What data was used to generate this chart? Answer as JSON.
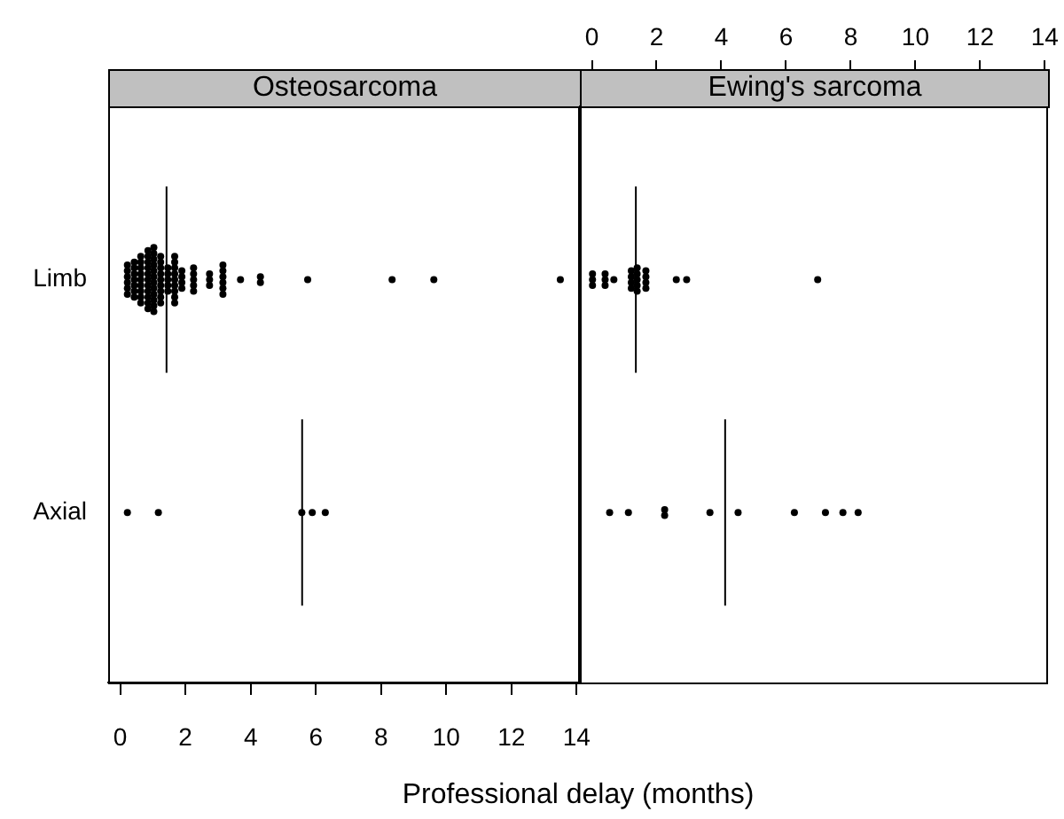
{
  "chart_data": [
    {
      "type": "scatter",
      "orientation": "horizontal",
      "title": "Osteosarcoma",
      "xlabel": "Professional delay (months)",
      "categories": [
        "Limb",
        "Axial"
      ],
      "xlim": [
        -0.37,
        14.1
      ],
      "xticks": [
        0,
        2,
        4,
        6,
        8,
        10,
        12,
        14
      ],
      "marker": "circle",
      "series": [
        {
          "color": "#000000",
          "x": [
            "Limb",
            "Limb",
            "Limb",
            "Limb",
            "Limb",
            "Limb",
            "Limb",
            "Limb",
            "Limb",
            "Limb",
            "Limb",
            "Limb",
            "Limb",
            "Limb",
            "Limb",
            "Limb",
            "Limb",
            "Limb",
            "Limb",
            "Limb",
            "Limb",
            "Limb",
            "Limb",
            "Limb",
            "Limb",
            "Limb",
            "Limb",
            "Limb",
            "Limb",
            "Limb",
            "Limb",
            "Limb",
            "Limb",
            "Limb",
            "Limb",
            "Limb",
            "Limb",
            "Limb",
            "Limb",
            "Limb",
            "Limb",
            "Limb",
            "Limb",
            "Limb",
            "Limb",
            "Limb",
            "Limb",
            "Limb",
            "Limb",
            "Limb",
            "Limb",
            "Limb",
            "Limb",
            "Limb",
            "Limb",
            "Limb",
            "Limb",
            "Limb",
            "Limb",
            "Limb",
            "Limb",
            "Limb",
            "Limb",
            "Limb",
            "Limb",
            "Limb",
            "Limb",
            "Limb",
            "Limb",
            "Limb",
            "Limb",
            "Limb",
            "Limb",
            "Limb",
            "Limb",
            "Limb",
            "Limb",
            "Limb",
            "Limb",
            "Limb",
            "Limb",
            "Limb",
            "Limb",
            "Limb",
            "Limb",
            "Limb",
            "Limb",
            "Limb",
            "Limb",
            "Limb",
            "Limb",
            "Limb",
            "Limb",
            "Axial",
            "Axial",
            "Axial",
            "Axial",
            "Axial"
          ],
          "values": [
            0.22,
            0.22,
            0.22,
            0.22,
            0.22,
            0.22,
            0.43,
            0.43,
            0.43,
            0.43,
            0.43,
            0.43,
            0.43,
            0.63,
            0.63,
            0.63,
            0.63,
            0.63,
            0.63,
            0.63,
            0.63,
            0.63,
            0.85,
            0.85,
            0.85,
            0.85,
            0.85,
            0.85,
            0.85,
            0.85,
            0.85,
            0.85,
            0.85,
            1.03,
            1.03,
            1.03,
            1.03,
            1.03,
            1.03,
            1.03,
            1.03,
            1.03,
            1.03,
            1.03,
            1.03,
            1.24,
            1.24,
            1.24,
            1.24,
            1.24,
            1.24,
            1.24,
            1.24,
            1.24,
            1.46,
            1.46,
            1.46,
            1.46,
            1.46,
            1.67,
            1.67,
            1.67,
            1.67,
            1.67,
            1.67,
            1.67,
            1.67,
            1.67,
            1.89,
            1.89,
            1.89,
            1.89,
            2.25,
            2.25,
            2.25,
            2.25,
            2.25,
            2.74,
            2.74,
            2.74,
            3.15,
            3.15,
            3.15,
            3.15,
            3.15,
            3.15,
            3.69,
            4.3,
            4.3,
            5.75,
            8.34,
            9.62,
            13.5,
            0.22,
            1.17,
            5.57,
            5.89,
            6.29
          ]
        }
      ],
      "ref_lines": [
        {
          "axis": "x",
          "value": 1.42,
          "color": "#000000"
        },
        {
          "axis": "x",
          "value": 5.58,
          "color": "#000000"
        }
      ]
    },
    {
      "type": "scatter",
      "orientation": "horizontal",
      "title": "Ewing's sarcoma",
      "categories": [
        "Limb",
        "Axial"
      ],
      "xlim": [
        -0.37,
        14.1
      ],
      "xticks": [
        0,
        2,
        4,
        6,
        8,
        10,
        12,
        14
      ],
      "tick_labels": "x",
      "marker": "circle",
      "series": [
        {
          "color": "#000000",
          "x": [
            "Limb",
            "Limb",
            "Limb",
            "Limb",
            "Limb",
            "Limb",
            "Limb",
            "Limb",
            "Limb",
            "Limb",
            "Limb",
            "Limb",
            "Limb",
            "Limb",
            "Limb",
            "Limb",
            "Limb",
            "Limb",
            "Limb",
            "Limb",
            "Limb",
            "Limb",
            "Limb",
            "Axial",
            "Axial",
            "Axial",
            "Axial",
            "Axial",
            "Axial",
            "Axial",
            "Axial",
            "Axial",
            "Axial"
          ],
          "values": [
            0.02,
            0.02,
            0.02,
            0.41,
            0.41,
            0.41,
            0.68,
            1.22,
            1.22,
            1.22,
            1.22,
            1.4,
            1.4,
            1.4,
            1.4,
            1.4,
            1.67,
            1.67,
            1.67,
            1.67,
            2.61,
            2.93,
            6.98,
            0.55,
            1.13,
            2.25,
            2.25,
            3.65,
            4.52,
            6.26,
            7.22,
            7.76,
            8.23
          ]
        }
      ],
      "ref_lines": [
        {
          "axis": "x",
          "value": 1.36,
          "color": "#000000"
        },
        {
          "axis": "x",
          "value": 4.12,
          "color": "#000000"
        }
      ]
    }
  ]
}
